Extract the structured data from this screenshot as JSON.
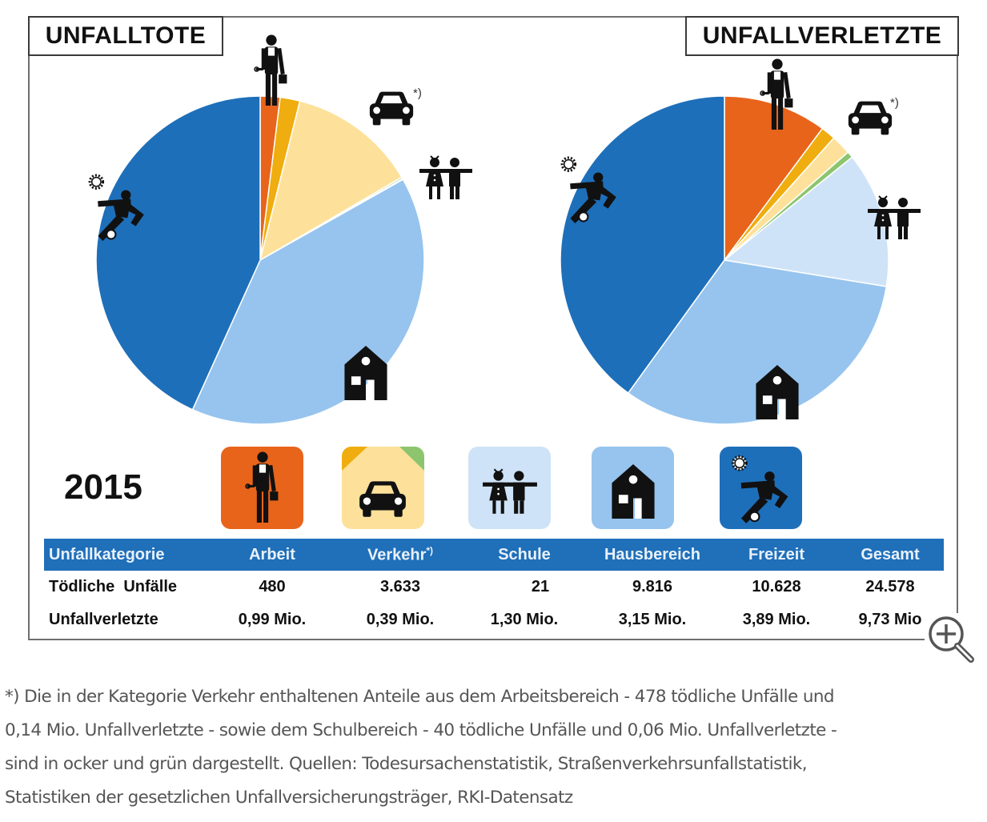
{
  "titles": {
    "left": "UNFALLTOTE",
    "right": "UNFALLVERLETZTE"
  },
  "year": "2015",
  "colors": {
    "arbeit": "#e8641b",
    "verkehr_ocker": "#f0ad0f",
    "verkehr": "#fde19a",
    "verkehr_gruen": "#8cc56e",
    "schule": "#cfe3f8",
    "hausbereich": "#96c4ee",
    "freizeit": "#1e6fb9",
    "table_header": "#1f6fb9"
  },
  "footnote_marker": "*)",
  "table": {
    "headers": [
      "Unfallkategorie",
      "Arbeit",
      "Verkehr",
      "Schule",
      "Hausbereich",
      "Freizeit",
      "Gesamt"
    ],
    "verkehr_sup": "*)",
    "rows": [
      {
        "label": "Tödliche  Unfälle",
        "values": [
          "480",
          "3.633",
          "21",
          "9.816",
          "10.628",
          "24.578"
        ]
      },
      {
        "label": "Unfallverletzte",
        "values": [
          "0,99 Mio.",
          "0,39 Mio.",
          "1,30 Mio.",
          "3,15 Mio.",
          "3,89 Mio.",
          "9,73 Mio"
        ]
      }
    ]
  },
  "footnote": {
    "lines": [
      "*) Die in der Kategorie Verkehr enthaltenen Anteile aus dem Arbeitsbereich - 478 tödliche Unfälle und",
      "0,14 Mio. Unfallverletzte - sowie dem Schulbereich - 40 tödliche Unfälle und 0,06 Mio. Unfallverletzte -",
      "sind in ocker und grün dargestellt. Quellen: Todesursachenstatistik, Straßenverkehrsunfallstatistik,",
      "Statistiken der gesetzlichen Unfallversicherungsträger, RKI-Datensatz"
    ]
  },
  "chart_data": [
    {
      "type": "pie",
      "title": "UNFALLTOTE",
      "year": "2015",
      "unit": "Tödliche Unfälle",
      "start": "12 o'clock, clockwise",
      "slices": [
        {
          "name": "Arbeit",
          "value": 480,
          "color": "#e8641b"
        },
        {
          "name": "Verkehr (Arbeitsbereich)",
          "value": 478,
          "color": "#f0ad0f"
        },
        {
          "name": "Verkehr",
          "value": 3115,
          "color": "#fde19a"
        },
        {
          "name": "Verkehr (Schulbereich)",
          "value": 40,
          "color": "#8cc56e"
        },
        {
          "name": "Schule",
          "value": 21,
          "color": "#cfe3f8"
        },
        {
          "name": "Hausbereich",
          "value": 9816,
          "color": "#96c4ee"
        },
        {
          "name": "Freizeit",
          "value": 10628,
          "color": "#1e6fb9"
        }
      ],
      "total": 24578
    },
    {
      "type": "pie",
      "title": "UNFALLVERLETZTE",
      "year": "2015",
      "unit": "Mio. Unfallverletzte",
      "start": "12 o'clock, clockwise",
      "slices": [
        {
          "name": "Arbeit",
          "value": 0.99,
          "color": "#e8641b"
        },
        {
          "name": "Verkehr (Arbeitsbereich)",
          "value": 0.14,
          "color": "#f0ad0f"
        },
        {
          "name": "Verkehr",
          "value": 0.19,
          "color": "#fde19a"
        },
        {
          "name": "Verkehr (Schulbereich)",
          "value": 0.06,
          "color": "#8cc56e"
        },
        {
          "name": "Schule",
          "value": 1.3,
          "color": "#cfe3f8"
        },
        {
          "name": "Hausbereich",
          "value": 3.15,
          "color": "#96c4ee"
        },
        {
          "name": "Freizeit",
          "value": 3.89,
          "color": "#1e6fb9"
        }
      ],
      "total": 9.73
    }
  ]
}
